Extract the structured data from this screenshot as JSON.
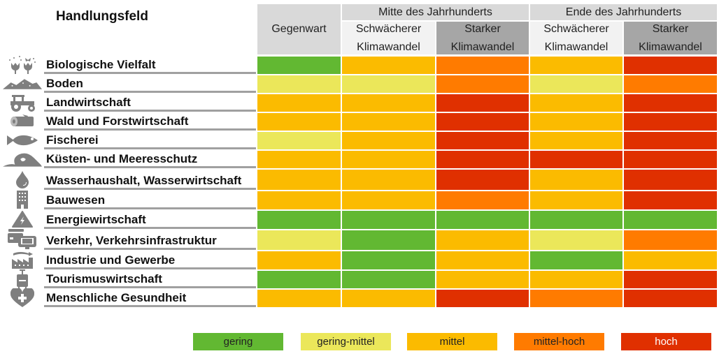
{
  "chart_data": {
    "type": "heatmap",
    "title": "Handlungsfeld",
    "column_groups": [
      {
        "label": "Mitte des Jahrhunderts"
      },
      {
        "label": "Ende des Jahrhunderts"
      }
    ],
    "columns": [
      {
        "label": "Gegenwart",
        "line2": ""
      },
      {
        "label": "Schwächerer",
        "line2": "Klimawandel"
      },
      {
        "label": "Starker",
        "line2": "Klimawandel"
      },
      {
        "label": "Schwächerer",
        "line2": "Klimawandel"
      },
      {
        "label": "Starker",
        "line2": "Klimawandel"
      }
    ],
    "levels": [
      "gering",
      "gering-mittel",
      "mittel",
      "mittel-hoch",
      "hoch"
    ],
    "level_colors": [
      "#62b832",
      "#ebe75a",
      "#fbbb00",
      "#ff7b00",
      "#e03000"
    ],
    "rows": [
      {
        "label": "Biologische Vielfalt",
        "icon": "flowers-butterfly-icon",
        "values": [
          0,
          2,
          3,
          2,
          4
        ]
      },
      {
        "label": "Boden",
        "icon": "soil-hills-icon",
        "values": [
          1,
          1,
          3,
          1,
          3
        ]
      },
      {
        "label": "Landwirtschaft",
        "icon": "tractor-icon",
        "values": [
          2,
          2,
          4,
          2,
          4
        ]
      },
      {
        "label": "Wald und Forstwirtschaft",
        "icon": "log-icon",
        "values": [
          2,
          2,
          4,
          2,
          4
        ]
      },
      {
        "label": "Fischerei",
        "icon": "fish-icon",
        "values": [
          1,
          2,
          4,
          2,
          4
        ]
      },
      {
        "label": "Küsten- und Meeresschutz",
        "icon": "wave-icon",
        "values": [
          2,
          2,
          4,
          4,
          4
        ]
      },
      {
        "label": "Wasserhaushalt, Wasserwirtschaft",
        "icon": "water-drop-icon",
        "values": [
          2,
          2,
          4,
          2,
          4
        ]
      },
      {
        "label": "Bauwesen",
        "icon": "building-icon",
        "values": [
          2,
          2,
          3,
          2,
          4
        ]
      },
      {
        "label": "Energiewirtschaft",
        "icon": "energy-warning-icon",
        "values": [
          0,
          0,
          0,
          0,
          0
        ]
      },
      {
        "label": "Verkehr, Verkehrsinfrastruktur",
        "icon": "vehicles-icon",
        "values": [
          1,
          0,
          2,
          1,
          3
        ]
      },
      {
        "label": "Industrie und Gewerbe",
        "icon": "factory-icon",
        "values": [
          2,
          0,
          2,
          0,
          2
        ]
      },
      {
        "label": "Tourismuswirtschaft",
        "icon": "suitcase-icon",
        "values": [
          0,
          0,
          2,
          2,
          4
        ]
      },
      {
        "label": "Menschliche Gesundheit",
        "icon": "heart-cross-icon",
        "values": [
          2,
          2,
          4,
          3,
          4
        ]
      }
    ],
    "legend": "bottom"
  }
}
